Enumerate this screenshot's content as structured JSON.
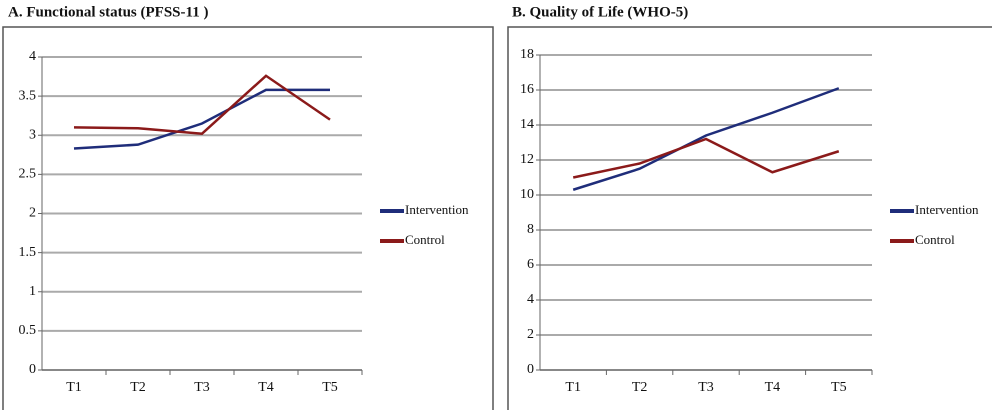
{
  "chart_data": [
    {
      "type": "line",
      "title": "A. Functional status (PFSS-11 )",
      "categories": [
        "T1",
        "T2",
        "T3",
        "T4",
        "T5"
      ],
      "series": [
        {
          "name": "Intervention",
          "color": "#1f2d7a",
          "values": [
            2.83,
            2.88,
            3.15,
            3.58,
            3.58
          ]
        },
        {
          "name": "Control",
          "color": "#8b1a1a",
          "values": [
            3.1,
            3.09,
            3.02,
            3.76,
            3.2
          ]
        }
      ],
      "ylim": [
        0,
        4
      ],
      "yticks": [
        0,
        0.5,
        1,
        1.5,
        2,
        2.5,
        3,
        3.5,
        4
      ],
      "grid": true,
      "legend": "right"
    },
    {
      "type": "line",
      "title": "B. Quality of Life (WHO-5)",
      "categories": [
        "T1",
        "T2",
        "T3",
        "T4",
        "T5"
      ],
      "series": [
        {
          "name": "Intervention",
          "color": "#1f2d7a",
          "values": [
            10.3,
            11.5,
            13.4,
            14.7,
            16.1
          ]
        },
        {
          "name": "Control",
          "color": "#8b1a1a",
          "values": [
            11.0,
            11.8,
            13.2,
            11.3,
            12.5
          ]
        }
      ],
      "ylim": [
        0,
        18
      ],
      "yticks": [
        0,
        2,
        4,
        6,
        8,
        10,
        12,
        14,
        16,
        18
      ],
      "grid": true,
      "legend": "right"
    }
  ]
}
